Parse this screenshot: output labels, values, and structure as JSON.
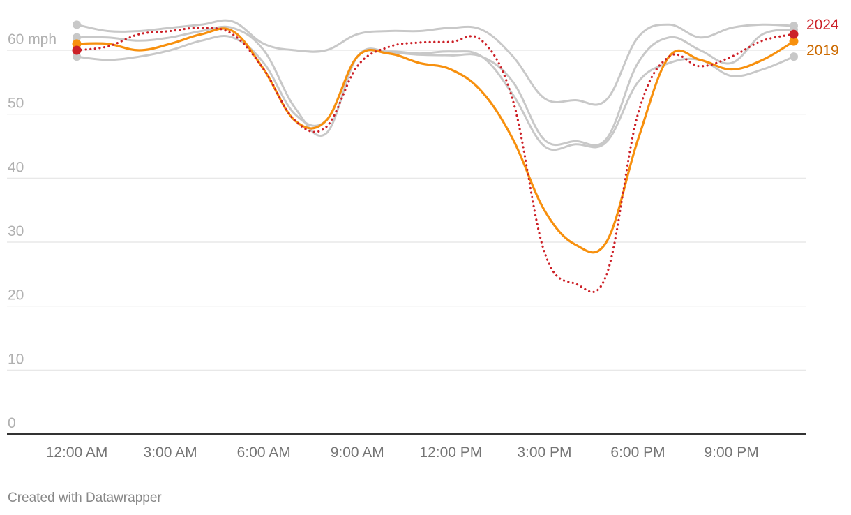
{
  "footer": {
    "credit": "Created with Datawrapper"
  },
  "colors": {
    "y2024": "#cc2027",
    "y2019": "#f7900e",
    "label2019": "#cc6a00",
    "context": "#c8c8c8"
  },
  "chart_data": {
    "type": "line",
    "title": "",
    "xlabel": "",
    "ylabel": "",
    "y_unit": "mph",
    "ylim": [
      0,
      65
    ],
    "y_ticks": [
      0,
      10,
      20,
      30,
      40,
      50,
      60
    ],
    "y_tick_labels": [
      "0",
      "10",
      "20",
      "30",
      "40",
      "50",
      "60 mph"
    ],
    "x_ticks": [
      0,
      3,
      6,
      9,
      12,
      15,
      18,
      21
    ],
    "x_tick_labels": [
      "12:00 AM",
      "3:00 AM",
      "6:00 AM",
      "9:00 AM",
      "12:00 PM",
      "3:00 PM",
      "6:00 PM",
      "9:00 PM"
    ],
    "grid": true,
    "x_hours": [
      0,
      1,
      2,
      3,
      4,
      5,
      6,
      7,
      8,
      9,
      10,
      11,
      12,
      13,
      14,
      15,
      16,
      17,
      18,
      19,
      20,
      21,
      22,
      23
    ],
    "series": [
      {
        "name": "2024",
        "style": "dotted",
        "label_color": "#cc2027",
        "values": [
          60,
          60.6,
          62.5,
          63,
          63.5,
          62.5,
          57,
          49,
          48,
          57.5,
          60.5,
          61.2,
          61.3,
          61.5,
          52,
          28.5,
          23.5,
          25,
          50,
          59,
          57.5,
          59,
          61.5,
          62.5
        ]
      },
      {
        "name": "2019",
        "style": "solid",
        "label_color": "#cc6a00",
        "values": [
          61,
          61,
          60,
          61,
          62.5,
          63,
          57,
          49,
          49,
          59,
          59.5,
          58,
          57,
          53.5,
          46,
          35,
          29.6,
          30.1,
          46,
          59,
          58.5,
          57,
          58.5,
          61.4
        ]
      },
      {
        "name": "",
        "style": "context",
        "values": [
          64,
          63,
          63,
          63.5,
          64,
          64.5,
          61,
          60,
          60,
          62.5,
          63,
          63,
          63.5,
          63.2,
          59,
          52.5,
          52.2,
          52.3,
          62,
          64,
          62,
          63.5,
          64,
          63.8
        ]
      },
      {
        "name": "",
        "style": "context",
        "values": [
          62,
          62,
          61.5,
          62,
          63,
          63.5,
          60,
          51,
          47,
          59,
          59.8,
          59.5,
          59.8,
          59,
          53,
          45,
          45.3,
          45.7,
          55,
          58,
          58.5,
          56,
          57,
          59
        ]
      },
      {
        "name": "",
        "style": "context",
        "values": [
          59,
          58.5,
          59,
          60,
          61.5,
          62,
          58,
          50,
          49,
          59,
          59.6,
          59.3,
          59.2,
          59,
          55,
          46,
          45.8,
          46.2,
          58,
          62,
          60,
          58,
          62.5,
          63.2
        ]
      }
    ]
  }
}
